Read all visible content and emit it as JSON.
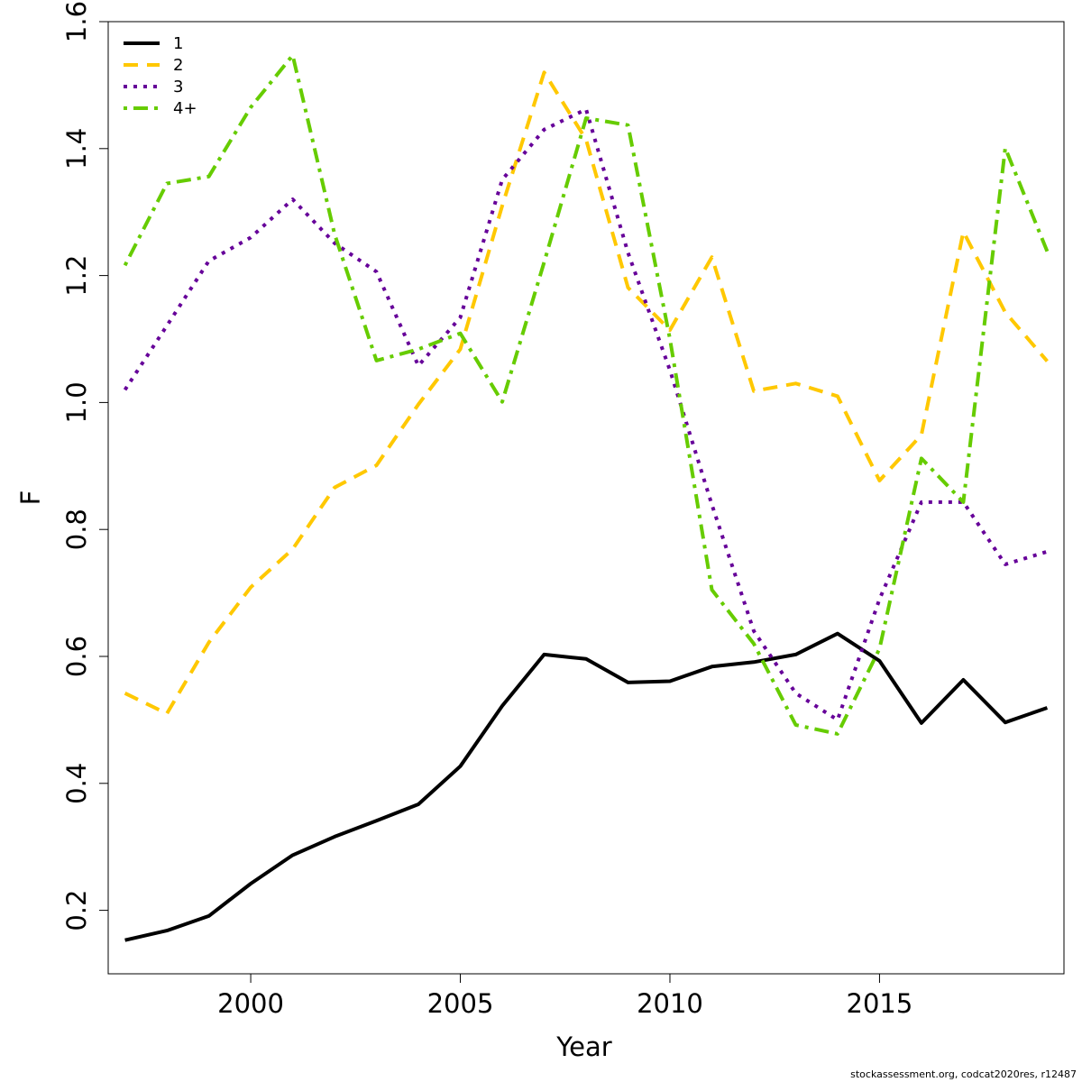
{
  "chart_data": {
    "type": "line",
    "title": "",
    "xlabel": "Year",
    "ylabel": "F",
    "xlim": [
      1996.6,
      2019.4
    ],
    "ylim": [
      0.1,
      1.6
    ],
    "xticks": [
      2000,
      2005,
      2010,
      2015
    ],
    "yticks": [
      0.2,
      0.4,
      0.6,
      0.8,
      1.0,
      1.2,
      1.4,
      1.6
    ],
    "ytick_labels": [
      "0.2",
      "0.4",
      "0.6",
      "0.8",
      "1.0",
      "1.2",
      "1.4",
      "1.6"
    ],
    "grid": false,
    "legend_position": "top-left",
    "x": [
      1997,
      1998,
      1999,
      2000,
      2001,
      2002,
      2003,
      2004,
      2005,
      2006,
      2007,
      2008,
      2009,
      2010,
      2011,
      2012,
      2013,
      2014,
      2015,
      2016,
      2017,
      2018,
      2019
    ],
    "series": [
      {
        "name": "1",
        "color": "#000000",
        "dash": "solid",
        "values": [
          0.153,
          0.168,
          0.191,
          0.242,
          0.287,
          0.316,
          0.341,
          0.367,
          0.427,
          0.522,
          0.603,
          0.596,
          0.559,
          0.561,
          0.584,
          0.591,
          0.603,
          0.636,
          0.593,
          0.495,
          0.563,
          0.496,
          0.519
        ]
      },
      {
        "name": "2",
        "color": "#FFC800",
        "dash": "dashed",
        "values": [
          0.542,
          0.51,
          0.622,
          0.709,
          0.769,
          0.866,
          0.901,
          0.997,
          1.084,
          1.31,
          1.52,
          1.414,
          1.181,
          1.114,
          1.229,
          1.018,
          1.03,
          1.01,
          0.877,
          0.949,
          1.269,
          1.142,
          1.065
        ]
      },
      {
        "name": "3",
        "color": "#660099",
        "dash": "dotted",
        "values": [
          1.02,
          1.121,
          1.223,
          1.26,
          1.32,
          1.251,
          1.206,
          1.058,
          1.134,
          1.351,
          1.43,
          1.462,
          1.236,
          1.051,
          0.839,
          0.64,
          0.542,
          0.5,
          0.69,
          0.843,
          0.843,
          0.745,
          0.765
        ]
      },
      {
        "name": "4+",
        "color": "#66CC00",
        "dash": "dotdash",
        "values": [
          1.216,
          1.345,
          1.356,
          1.465,
          1.547,
          1.265,
          1.066,
          1.084,
          1.109,
          1.001,
          1.221,
          1.448,
          1.437,
          1.1,
          0.705,
          0.62,
          0.492,
          0.478,
          0.612,
          0.912,
          0.843,
          1.401,
          1.238
        ]
      }
    ]
  },
  "footer": {
    "credit": "stockassessment.org, codcat2020res, r12487"
  }
}
